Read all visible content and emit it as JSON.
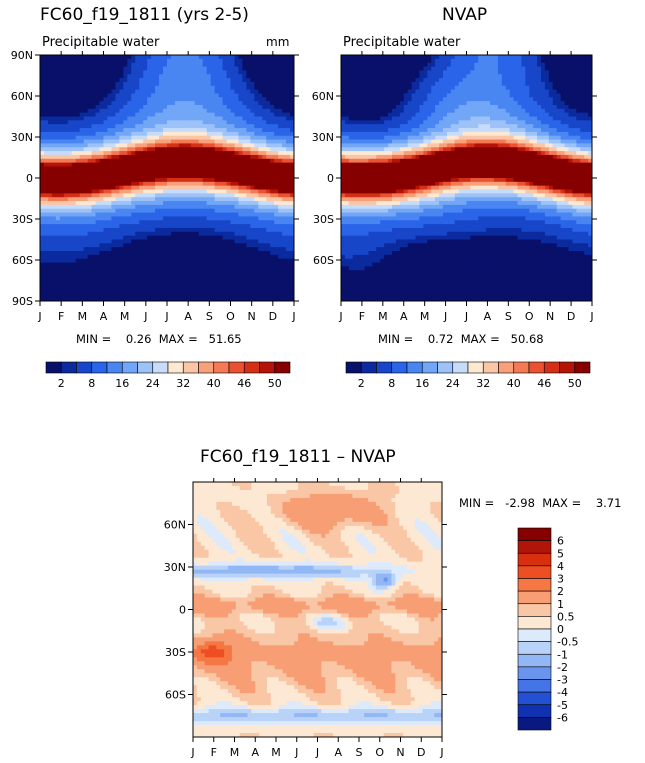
{
  "chart_data": [
    {
      "type": "heatmap",
      "title": "FC60_f19_1811 (yrs 2-5)",
      "subtitle": "Precipitable water",
      "units": "mm",
      "x_ticks": [
        "J",
        "F",
        "M",
        "A",
        "M",
        "J",
        "J",
        "A",
        "S",
        "O",
        "N",
        "D",
        "J"
      ],
      "y_ticks": [
        "90N",
        "60N",
        "30N",
        "0",
        "30S",
        "60S",
        "90S"
      ],
      "y_range": [
        -90,
        90
      ],
      "stats_label": "MIN =    0.26  MAX =   51.65",
      "min": 0.26,
      "max": 51.65,
      "colorbar_labels": [
        "2",
        "8",
        "16",
        "24",
        "32",
        "40",
        "46",
        "50"
      ]
    },
    {
      "type": "heatmap",
      "title": "NVAP",
      "subtitle": "Precipitable water",
      "x_ticks": [
        "J",
        "F",
        "M",
        "A",
        "M",
        "J",
        "J",
        "A",
        "S",
        "O",
        "N",
        "D",
        "J"
      ],
      "y_ticks": [
        "60N",
        "30N",
        "0",
        "30S",
        "60S"
      ],
      "y_range": [
        -90,
        90
      ],
      "stats_label": "MIN =    0.72  MAX =   50.68",
      "min": 0.72,
      "max": 50.68,
      "colorbar_labels": [
        "2",
        "8",
        "16",
        "24",
        "32",
        "40",
        "46",
        "50"
      ]
    },
    {
      "type": "heatmap",
      "title": "FC60_f19_1811 – NVAP",
      "x_ticks": [
        "J",
        "F",
        "M",
        "A",
        "M",
        "J",
        "J",
        "A",
        "S",
        "O",
        "N",
        "D",
        "J"
      ],
      "y_ticks": [
        "60N",
        "30N",
        "0",
        "30S",
        "60S"
      ],
      "y_range": [
        -90,
        90
      ],
      "stats_label": "MIN =   -2.98  MAX =    3.71",
      "min": -2.98,
      "max": 3.71,
      "colorbar_labels": [
        "6",
        "5",
        "4",
        "3",
        "2",
        "1",
        "0.5",
        "0",
        "-0.5",
        "-1",
        "-2",
        "-3",
        "-4",
        "-5",
        "-6"
      ]
    }
  ],
  "colors": {
    "pw_scale": [
      "#08106a",
      "#0a2a9e",
      "#1846c8",
      "#2a64e8",
      "#4a86f2",
      "#72a6f6",
      "#9cc2f8",
      "#c6dcfa",
      "#fde8d2",
      "#fbc6a6",
      "#f8a07c",
      "#f47a56",
      "#ea5232",
      "#d43018",
      "#b41408",
      "#860000"
    ],
    "diff_scale": [
      "#860000",
      "#b01508",
      "#d8300f",
      "#ee4f22",
      "#f47744",
      "#f79e74",
      "#f9c6a6",
      "#fde8d4",
      "#dceafc",
      "#b9d2f8",
      "#93b6f4",
      "#6b94ee",
      "#4474e6",
      "#2450d4",
      "#1032b0",
      "#081a82"
    ]
  }
}
